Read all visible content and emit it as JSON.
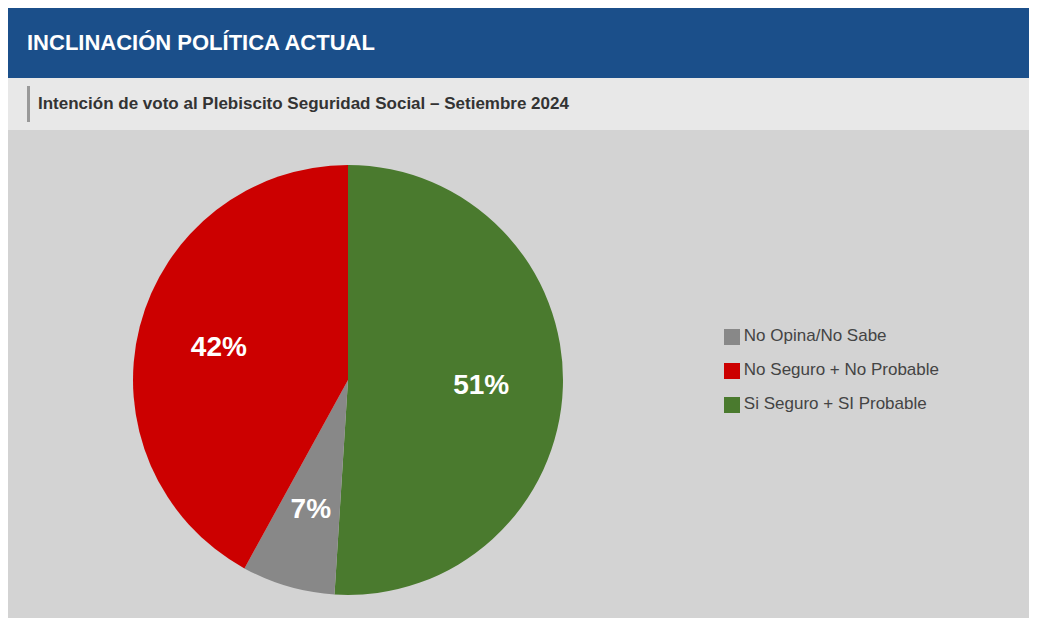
{
  "chart_data": {
    "type": "pie",
    "title": "INCLINACIÓN POLÍTICA ACTUAL",
    "subtitle": "Intención de voto al Plebiscito Seguridad Social – Setiembre 2024",
    "categories": [
      "Si Seguro + SI Probable",
      "No Opina/No Sabe",
      "No Seguro + No Probable"
    ],
    "values": [
      51,
      7,
      42
    ],
    "value_labels": [
      "51%",
      "7%",
      "42%"
    ],
    "colors": [
      "#4a7a2e",
      "#888888",
      "#cc0000"
    ],
    "data_labels": true,
    "legend": "right"
  }
}
